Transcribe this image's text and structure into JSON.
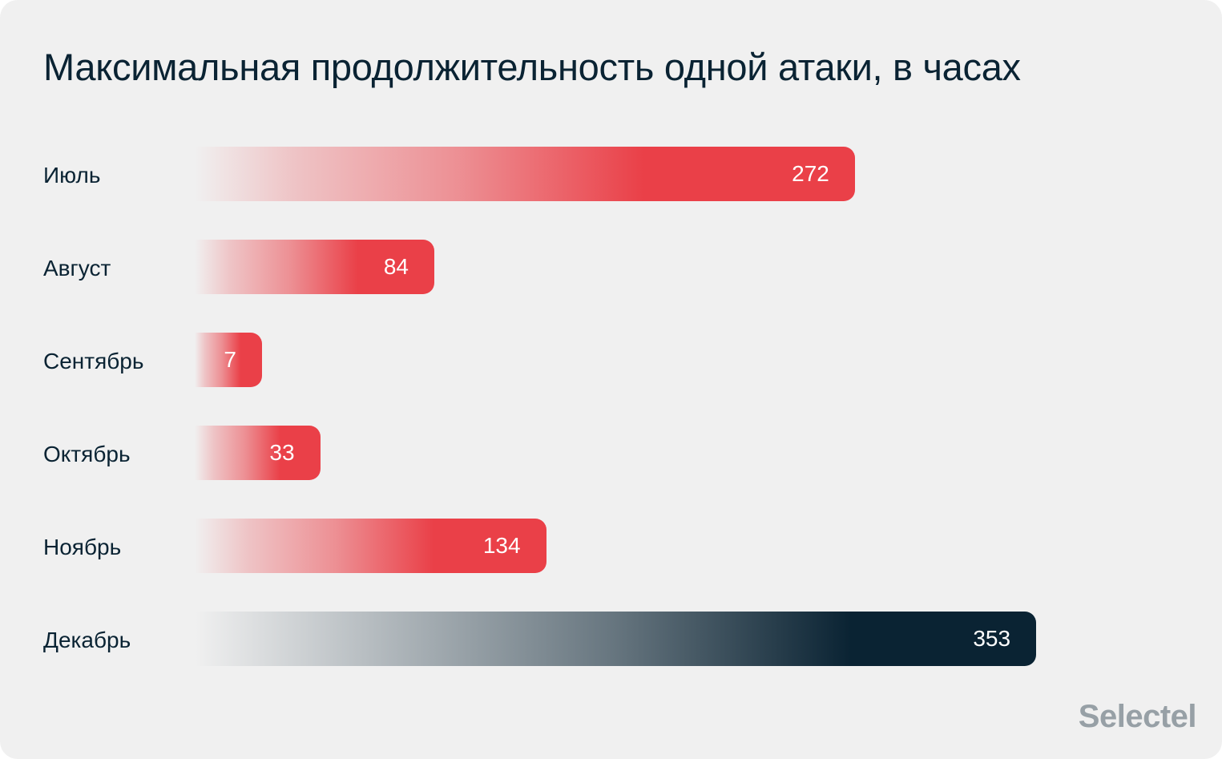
{
  "chart_data": {
    "type": "bar",
    "orientation": "horizontal",
    "title": "Максимальная продолжительность одной атаки, в часах",
    "categories": [
      "Июль",
      "Август",
      "Сентябрь",
      "Октябрь",
      "Ноябрь",
      "Декабрь"
    ],
    "values": [
      272,
      84,
      7,
      33,
      134,
      353
    ],
    "colors": [
      "#ea4048",
      "#ea4048",
      "#ea4048",
      "#ea4048",
      "#ea4048",
      "#0a2333"
    ],
    "grid": false,
    "data_labels": true
  },
  "background": "#f0f0f0",
  "logo": "Selectel"
}
